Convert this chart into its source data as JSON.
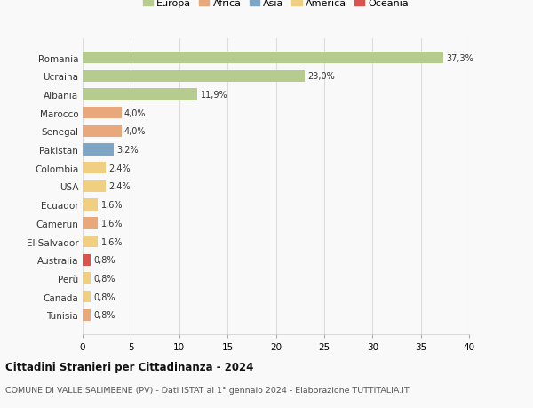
{
  "countries": [
    "Romania",
    "Ucraina",
    "Albania",
    "Marocco",
    "Senegal",
    "Pakistan",
    "Colombia",
    "USA",
    "Ecuador",
    "Camerun",
    "El Salvador",
    "Australia",
    "Perù",
    "Canada",
    "Tunisia"
  ],
  "values": [
    37.3,
    23.0,
    11.9,
    4.0,
    4.0,
    3.2,
    2.4,
    2.4,
    1.6,
    1.6,
    1.6,
    0.8,
    0.8,
    0.8,
    0.8
  ],
  "labels": [
    "37,3%",
    "23,0%",
    "11,9%",
    "4,0%",
    "4,0%",
    "3,2%",
    "2,4%",
    "2,4%",
    "1,6%",
    "1,6%",
    "1,6%",
    "0,8%",
    "0,8%",
    "0,8%",
    "0,8%"
  ],
  "continents": [
    "Europa",
    "Europa",
    "Europa",
    "Africa",
    "Africa",
    "Asia",
    "America",
    "America",
    "America",
    "Africa",
    "America",
    "Oceania",
    "America",
    "America",
    "Africa"
  ],
  "continent_colors": {
    "Europa": "#b5cc8e",
    "Africa": "#e8a87c",
    "Asia": "#7ea6c4",
    "America": "#f0d080",
    "Oceania": "#d9534f"
  },
  "legend_order": [
    "Europa",
    "Africa",
    "Asia",
    "America",
    "Oceania"
  ],
  "title": "Cittadini Stranieri per Cittadinanza - 2024",
  "subtitle": "COMUNE DI VALLE SALIMBENE (PV) - Dati ISTAT al 1° gennaio 2024 - Elaborazione TUTTITALIA.IT",
  "xlim": [
    0,
    40
  ],
  "xticks": [
    0,
    5,
    10,
    15,
    20,
    25,
    30,
    35,
    40
  ],
  "background_color": "#f9f9f9",
  "grid_color": "#dddddd"
}
